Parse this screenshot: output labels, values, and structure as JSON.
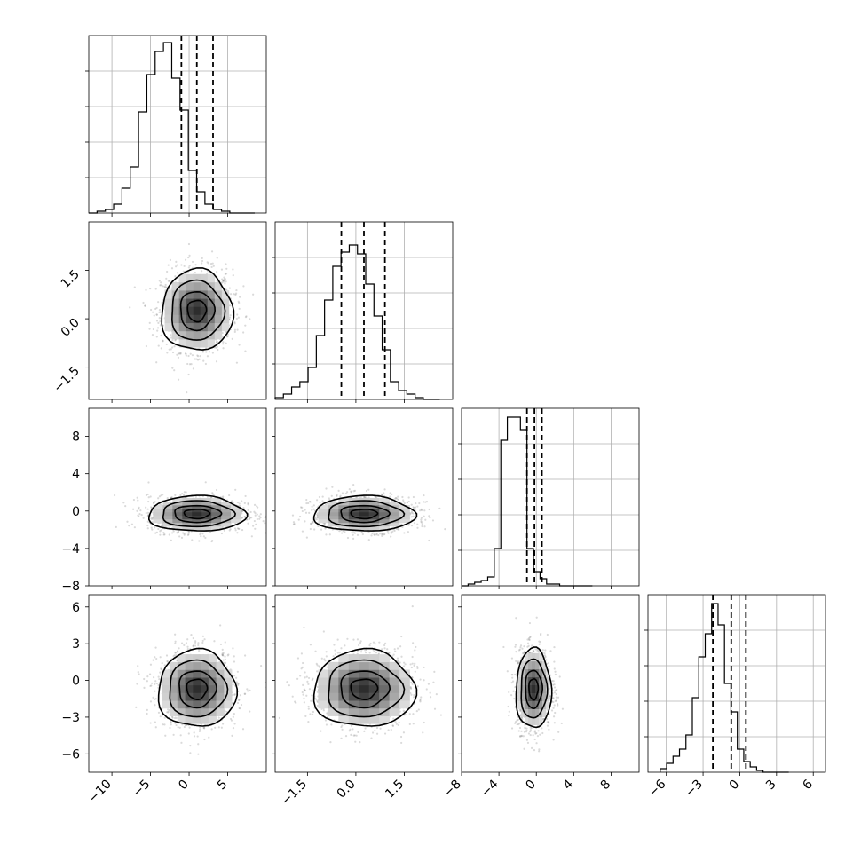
{
  "chart_data": {
    "type": "corner",
    "params": [
      {
        "range": [
          -13,
          10
        ],
        "ticks": [
          -10,
          -5,
          0,
          5
        ],
        "tick_labels": [
          "−10",
          "−5",
          "0",
          "5"
        ],
        "quantiles": [
          -1.0,
          1.0,
          3.1
        ],
        "hist": {
          "edges": [
            -13,
            8.5
          ],
          "counts": [
            0.0,
            0.01,
            0.02,
            0.05,
            0.14,
            0.26,
            0.57,
            0.78,
            0.91,
            0.96,
            0.76,
            0.58,
            0.24,
            0.12,
            0.05,
            0.02,
            0.01,
            0.0,
            0.0,
            0.0
          ]
        }
      },
      {
        "range": [
          -2.5,
          3.0
        ],
        "ticks": [
          -1.5,
          0.0,
          1.5
        ],
        "tick_labels": [
          "−1.5",
          "0.0",
          "1.5"
        ],
        "quantiles": [
          -0.45,
          0.25,
          0.9
        ],
        "hist": {
          "edges": [
            -2.5,
            2.6
          ],
          "counts": [
            0.01,
            0.03,
            0.07,
            0.1,
            0.18,
            0.36,
            0.56,
            0.75,
            0.83,
            0.87,
            0.82,
            0.65,
            0.47,
            0.28,
            0.1,
            0.05,
            0.03,
            0.01,
            0.0,
            0.0
          ]
        }
      },
      {
        "range": [
          -8,
          11
        ],
        "ticks": [
          -8,
          -4,
          0,
          4,
          8
        ],
        "tick_labels": [
          "−8",
          "−4",
          "0",
          "4",
          "8"
        ],
        "quantiles": [
          -1.0,
          -0.2,
          0.6
        ],
        "hist": {
          "edges": [
            -8,
            6.0
          ],
          "counts": [
            0.0,
            0.01,
            0.02,
            0.03,
            0.05,
            0.21,
            0.82,
            0.95,
            0.95,
            0.88,
            0.21,
            0.08,
            0.04,
            0.01,
            0.01,
            0.0,
            0.0,
            0.0,
            0.0,
            0.0
          ]
        }
      },
      {
        "range": [
          -7.5,
          7.0
        ],
        "ticks": [
          -6,
          -3,
          0,
          3,
          6
        ],
        "tick_labels": [
          "−6",
          "−3",
          "0",
          "3",
          "6"
        ],
        "quantiles": [
          -2.2,
          -0.7,
          0.5
        ],
        "hist": {
          "edges": [
            -6.5,
            4.0
          ],
          "counts": [
            0.02,
            0.05,
            0.09,
            0.13,
            0.21,
            0.42,
            0.65,
            0.78,
            0.95,
            0.83,
            0.5,
            0.34,
            0.13,
            0.06,
            0.03,
            0.01,
            0.0,
            0.0,
            0.0,
            0.0
          ]
        }
      }
    ],
    "pairs": [
      {
        "x": 0,
        "y": 1,
        "center": [
          1.0,
          0.25
        ],
        "sd": [
          2.2,
          0.6
        ],
        "corr": 0.0
      },
      {
        "x": 0,
        "y": 2,
        "center": [
          1.0,
          -0.3
        ],
        "sd": [
          3.0,
          0.9
        ],
        "corr": 0.0
      },
      {
        "x": 1,
        "y": 2,
        "center": [
          0.25,
          -0.3
        ],
        "sd": [
          0.75,
          0.9
        ],
        "corr": 0.0
      },
      {
        "x": 0,
        "y": 3,
        "center": [
          1.0,
          -0.7
        ],
        "sd": [
          2.4,
          1.5
        ],
        "corr": 0.0
      },
      {
        "x": 1,
        "y": 3,
        "center": [
          0.25,
          -0.7
        ],
        "sd": [
          0.75,
          1.5
        ],
        "corr": 0.0
      },
      {
        "x": 2,
        "y": 3,
        "center": [
          -0.3,
          -0.7
        ],
        "sd": [
          0.9,
          1.55
        ],
        "corr": 0.0
      }
    ]
  }
}
